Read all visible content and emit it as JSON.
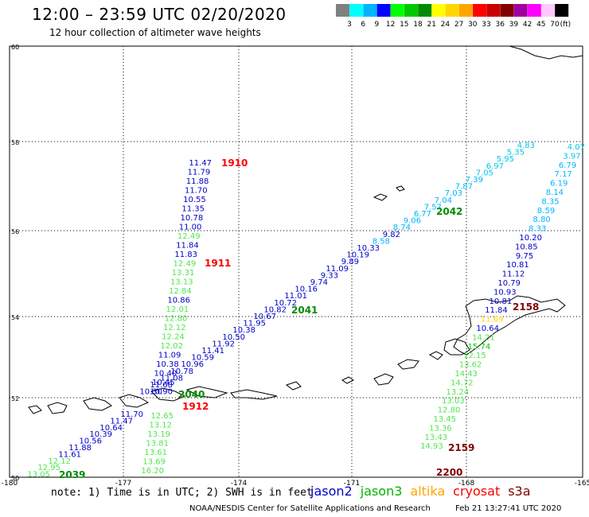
{
  "header": {
    "title": "12:00 – 23:59 UTC 02/20/2020",
    "subtitle": "12 hour collection of altimeter wave heights"
  },
  "legend": {
    "unit": "(ft)",
    "bins": [
      {
        "label": "3",
        "color": "#808080"
      },
      {
        "label": "6",
        "color": "#00ffff"
      },
      {
        "label": "9",
        "color": "#00b4ff"
      },
      {
        "label": "12",
        "color": "#0000ff"
      },
      {
        "label": "15",
        "color": "#00ff00"
      },
      {
        "label": "18",
        "color": "#00c800"
      },
      {
        "label": "21",
        "color": "#008c00"
      },
      {
        "label": "24",
        "color": "#ffff00"
      },
      {
        "label": "27",
        "color": "#ffd700"
      },
      {
        "label": "30",
        "color": "#ffa500"
      },
      {
        "label": "33",
        "color": "#ff0000"
      },
      {
        "label": "36",
        "color": "#c80000"
      },
      {
        "label": "39",
        "color": "#820000"
      },
      {
        "label": "42",
        "color": "#a000a0"
      },
      {
        "label": "45",
        "color": "#ff00ff"
      },
      {
        "label": "70",
        "color": "#ffc8ff"
      },
      {
        "label": "",
        "color": "#000000"
      }
    ]
  },
  "axes": {
    "lat_ticks": [
      "60",
      "58",
      "56",
      "54",
      "52",
      "50"
    ],
    "lon_ticks": [
      "-180",
      "-177",
      "-174",
      "-171",
      "-168",
      "-165"
    ]
  },
  "tracks": [
    {
      "label_color": "#ff0000",
      "time": "1910",
      "values": [
        {
          "v": "11.47",
          "c": "#0000c8"
        },
        {
          "v": "11.79",
          "c": "#0000c8"
        },
        {
          "v": "11.88",
          "c": "#0000c8"
        },
        {
          "v": "11.70",
          "c": "#0000c8"
        },
        {
          "v": "10.55",
          "c": "#0000c8"
        },
        {
          "v": "11.35",
          "c": "#0000c8"
        },
        {
          "v": "10.78",
          "c": "#0000c8"
        },
        {
          "v": "11.00",
          "c": "#0000c8"
        },
        {
          "v": "12.49",
          "c": "#50e650"
        },
        {
          "v": "11.84",
          "c": "#0000c8"
        },
        {
          "v": "11.83",
          "c": "#0000c8"
        },
        {
          "v": "12.49",
          "c": "#50e650"
        },
        {
          "v": "13.31",
          "c": "#50e650"
        },
        {
          "v": "13.13",
          "c": "#50e650"
        },
        {
          "v": "12.84",
          "c": "#50e650"
        },
        {
          "v": "10.86",
          "c": "#0000c8"
        },
        {
          "v": "12.01",
          "c": "#50e650"
        },
        {
          "v": "12.80",
          "c": "#50e650"
        },
        {
          "v": "12.12",
          "c": "#50e650"
        },
        {
          "v": "12.24",
          "c": "#50e650"
        },
        {
          "v": "12.02",
          "c": "#50e650"
        },
        {
          "v": "11.09",
          "c": "#0000c8"
        },
        {
          "v": "10.38",
          "c": "#0000c8"
        },
        {
          "v": "10.40",
          "c": "#0000c8"
        },
        {
          "v": "10.45",
          "c": "#0000c8"
        },
        {
          "v": "10.90",
          "c": "#0000c8"
        }
      ]
    },
    {
      "time": "1911"
    },
    {
      "time": "1912"
    },
    {
      "time": "2040"
    },
    {
      "time": "2041"
    },
    {
      "time": "2042"
    },
    {
      "time": "2039"
    },
    {
      "time": "2158"
    },
    {
      "time": "2159"
    },
    {
      "time": "2200"
    }
  ],
  "track_diag": [
    {
      "v": "4.83",
      "c": "#00c8e6"
    },
    {
      "v": "5.35",
      "c": "#00c8e6"
    },
    {
      "v": "5.95",
      "c": "#00c8e6"
    },
    {
      "v": "6.97",
      "c": "#00c8e6"
    },
    {
      "v": "7.05",
      "c": "#00c8e6"
    },
    {
      "v": "7.39",
      "c": "#00b4ff"
    },
    {
      "v": "7.87",
      "c": "#00b4ff"
    },
    {
      "v": "7.03",
      "c": "#00b4ff"
    },
    {
      "v": "7.04",
      "c": "#00b4ff"
    },
    {
      "v": "7.57",
      "c": "#00b4ff"
    },
    {
      "v": "6.77",
      "c": "#00b4ff"
    },
    {
      "v": "9.06",
      "c": "#00b4ff"
    },
    {
      "v": "8.74",
      "c": "#00b4ff"
    },
    {
      "v": "9.82",
      "c": "#0000c8"
    },
    {
      "v": "8.58",
      "c": "#00b4ff"
    },
    {
      "v": "10.33",
      "c": "#0000c8"
    },
    {
      "v": "10.19",
      "c": "#0000c8"
    },
    {
      "v": "9.89",
      "c": "#0000c8"
    },
    {
      "v": "11.09",
      "c": "#0000c8"
    },
    {
      "v": "9.33",
      "c": "#0000c8"
    },
    {
      "v": "9.74",
      "c": "#0000c8"
    },
    {
      "v": "10.16",
      "c": "#0000c8"
    },
    {
      "v": "11.01",
      "c": "#0000c8"
    },
    {
      "v": "10.72",
      "c": "#0000c8"
    },
    {
      "v": "10.82",
      "c": "#0000c8"
    },
    {
      "v": "10.67",
      "c": "#0000c8"
    },
    {
      "v": "11.95",
      "c": "#0000c8"
    },
    {
      "v": "10.38",
      "c": "#0000c8"
    },
    {
      "v": "10.50",
      "c": "#0000c8"
    },
    {
      "v": "11.92",
      "c": "#0000c8"
    },
    {
      "v": "11.41",
      "c": "#0000c8"
    },
    {
      "v": "10.59",
      "c": "#0000c8"
    },
    {
      "v": "10.96",
      "c": "#0000c8"
    },
    {
      "v": "10.78",
      "c": "#0000c8"
    },
    {
      "v": "11.08",
      "c": "#0000c8"
    },
    {
      "v": "11.68",
      "c": "#0000c8"
    },
    {
      "v": "10.30",
      "c": "#0000c8"
    }
  ],
  "track_sw": [
    {
      "v": "12.65",
      "c": "#50e650"
    },
    {
      "v": "13.12",
      "c": "#50e650"
    },
    {
      "v": "13.19",
      "c": "#50e650"
    },
    {
      "v": "13.81",
      "c": "#50e650"
    },
    {
      "v": "13.61",
      "c": "#50e650"
    },
    {
      "v": "13.69",
      "c": "#50e650"
    },
    {
      "v": "16.20",
      "c": "#50e650"
    }
  ],
  "track_sw2": [
    {
      "v": "11.70",
      "c": "#0000c8"
    },
    {
      "v": "11.47",
      "c": "#0000c8"
    },
    {
      "v": "10.64",
      "c": "#0000c8"
    },
    {
      "v": "10.39",
      "c": "#0000c8"
    },
    {
      "v": "10.56",
      "c": "#0000c8"
    },
    {
      "v": "11.88",
      "c": "#0000c8"
    },
    {
      "v": "11.61",
      "c": "#0000c8"
    },
    {
      "v": "12.12",
      "c": "#50e650"
    },
    {
      "v": "12.95",
      "c": "#50e650"
    },
    {
      "v": "13.05",
      "c": "#50e650"
    }
  ],
  "track_east": [
    {
      "v": "4.07",
      "c": "#00c8e6"
    },
    {
      "v": "3.97",
      "c": "#00c8e6"
    },
    {
      "v": "6.79",
      "c": "#00b4ff"
    },
    {
      "v": "7.17",
      "c": "#00b4ff"
    },
    {
      "v": "6.19",
      "c": "#00b4ff"
    },
    {
      "v": "8.14",
      "c": "#00b4ff"
    },
    {
      "v": "8.35",
      "c": "#00b4ff"
    },
    {
      "v": "8.59",
      "c": "#00b4ff"
    },
    {
      "v": "8.80",
      "c": "#00b4ff"
    },
    {
      "v": "8.33",
      "c": "#00b4ff"
    },
    {
      "v": "10.20",
      "c": "#0000c8"
    },
    {
      "v": "10.85",
      "c": "#0000c8"
    },
    {
      "v": "9.75",
      "c": "#0000c8"
    },
    {
      "v": "10.81",
      "c": "#0000c8"
    },
    {
      "v": "11.12",
      "c": "#0000c8"
    },
    {
      "v": "10.79",
      "c": "#0000c8"
    },
    {
      "v": "10.93",
      "c": "#0000c8"
    },
    {
      "v": "10.81",
      "c": "#0000c8"
    },
    {
      "v": "11.84",
      "c": "#0000c8"
    },
    {
      "v": "11.69",
      "c": "#ffd700"
    },
    {
      "v": "10.64",
      "c": "#0000c8"
    },
    {
      "v": "14.21",
      "c": "#50e650"
    },
    {
      "v": "15.74",
      "c": "#00c800"
    },
    {
      "v": "12.15",
      "c": "#50e650"
    },
    {
      "v": "13.62",
      "c": "#50e650"
    },
    {
      "v": "14.43",
      "c": "#50e650"
    },
    {
      "v": "14.72",
      "c": "#50e650"
    },
    {
      "v": "13.24",
      "c": "#50e650"
    },
    {
      "v": "13.03",
      "c": "#50e650"
    },
    {
      "v": "12.80",
      "c": "#50e650"
    },
    {
      "v": "13.45",
      "c": "#50e650"
    },
    {
      "v": "13.36",
      "c": "#50e650"
    },
    {
      "v": "13.43",
      "c": "#50e650"
    },
    {
      "v": "14.93",
      "c": "#50e650"
    }
  ],
  "times": [
    {
      "t": "1910",
      "c": "#ff0000"
    },
    {
      "t": "1911",
      "c": "#ff0000"
    },
    {
      "t": "1912",
      "c": "#ff0000"
    },
    {
      "t": "2040",
      "c": "#008c00"
    },
    {
      "t": "2041",
      "c": "#008c00"
    },
    {
      "t": "2042",
      "c": "#008c00"
    },
    {
      "t": "2039",
      "c": "#008c00"
    },
    {
      "t": "2158",
      "c": "#820000"
    },
    {
      "t": "2159",
      "c": "#820000"
    },
    {
      "t": "2200",
      "c": "#820000"
    }
  ],
  "footer": {
    "note": "note: 1) Time is in UTC; 2) SWH is in feet",
    "missions": [
      {
        "name": "jason2",
        "color": "#0000c8"
      },
      {
        "name": "jason3",
        "color": "#00b400"
      },
      {
        "name": "altika",
        "color": "#ffa500"
      },
      {
        "name": "cryosat",
        "color": "#ff0000"
      },
      {
        "name": "s3a",
        "color": "#820000"
      }
    ],
    "credit": "NOAA/NESDIS Center for Satellite Applications and Research",
    "timestamp": "Feb 21 13:27:41 UTC 2020"
  }
}
